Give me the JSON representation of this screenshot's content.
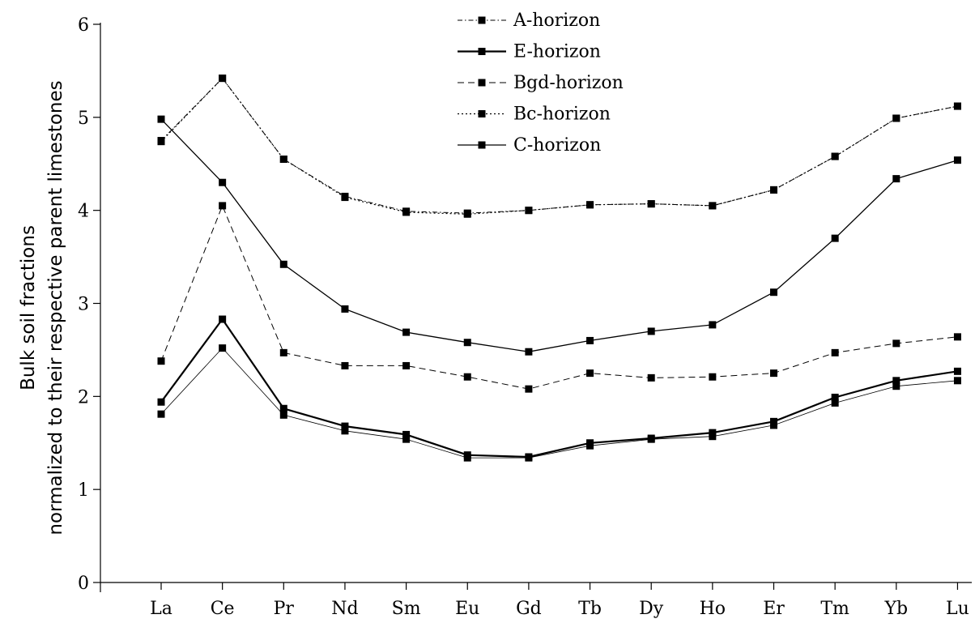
{
  "chart_data": {
    "type": "line",
    "title": "",
    "xlabel": "",
    "ylabel_lines": [
      "Bulk soil fractions",
      "normalized to their respective parent limestones"
    ],
    "categories": [
      "La",
      "Ce",
      "Pr",
      "Nd",
      "Sm",
      "Eu",
      "Gd",
      "Tb",
      "Dy",
      "Ho",
      "Er",
      "Tm",
      "Yb",
      "Lu"
    ],
    "ylim": [
      0,
      6
    ],
    "yticks": [
      0,
      1,
      2,
      3,
      4,
      5,
      6
    ],
    "grid": false,
    "legend_position": "top-center",
    "series": [
      {
        "name": "A-horizon",
        "style": "dashdot",
        "stroke_width": 1,
        "values": [
          4.75,
          5.42,
          4.55,
          4.15,
          3.99,
          3.97,
          4.0,
          4.06,
          4.07,
          4.05,
          4.22,
          4.58,
          4.99,
          5.12
        ]
      },
      {
        "name": "E-horizon",
        "style": "solid",
        "stroke_width": 2.2,
        "values": [
          1.94,
          2.83,
          1.87,
          1.68,
          1.59,
          1.37,
          1.35,
          1.5,
          1.55,
          1.61,
          1.73,
          1.99,
          2.17,
          2.27
        ]
      },
      {
        "name": "Bgd-horizon",
        "style": "dashed",
        "stroke_width": 1,
        "values": [
          2.38,
          4.05,
          2.47,
          2.33,
          2.33,
          2.21,
          2.08,
          2.25,
          2.2,
          2.21,
          2.25,
          2.47,
          2.57,
          2.64
        ]
      },
      {
        "name": "Bc-horizon",
        "style": "dotted",
        "stroke_width": 1.2,
        "values": [
          4.74,
          5.42,
          4.55,
          4.14,
          3.98,
          3.96,
          4.0,
          4.06,
          4.07,
          4.05,
          4.22,
          4.58,
          4.99,
          5.12
        ]
      },
      {
        "name": "C-horizon",
        "style": "solid",
        "stroke_width": 1.3,
        "values": [
          4.98,
          4.3,
          3.42,
          2.94,
          2.69,
          2.58,
          2.48,
          2.6,
          2.7,
          2.77,
          3.12,
          3.7,
          4.34,
          4.54
        ]
      },
      {
        "name": "",
        "style": "solid",
        "stroke_width": 0.8,
        "values": [
          1.81,
          2.52,
          1.8,
          1.63,
          1.54,
          1.34,
          1.34,
          1.47,
          1.54,
          1.57,
          1.69,
          1.93,
          2.11,
          2.17
        ]
      }
    ]
  }
}
